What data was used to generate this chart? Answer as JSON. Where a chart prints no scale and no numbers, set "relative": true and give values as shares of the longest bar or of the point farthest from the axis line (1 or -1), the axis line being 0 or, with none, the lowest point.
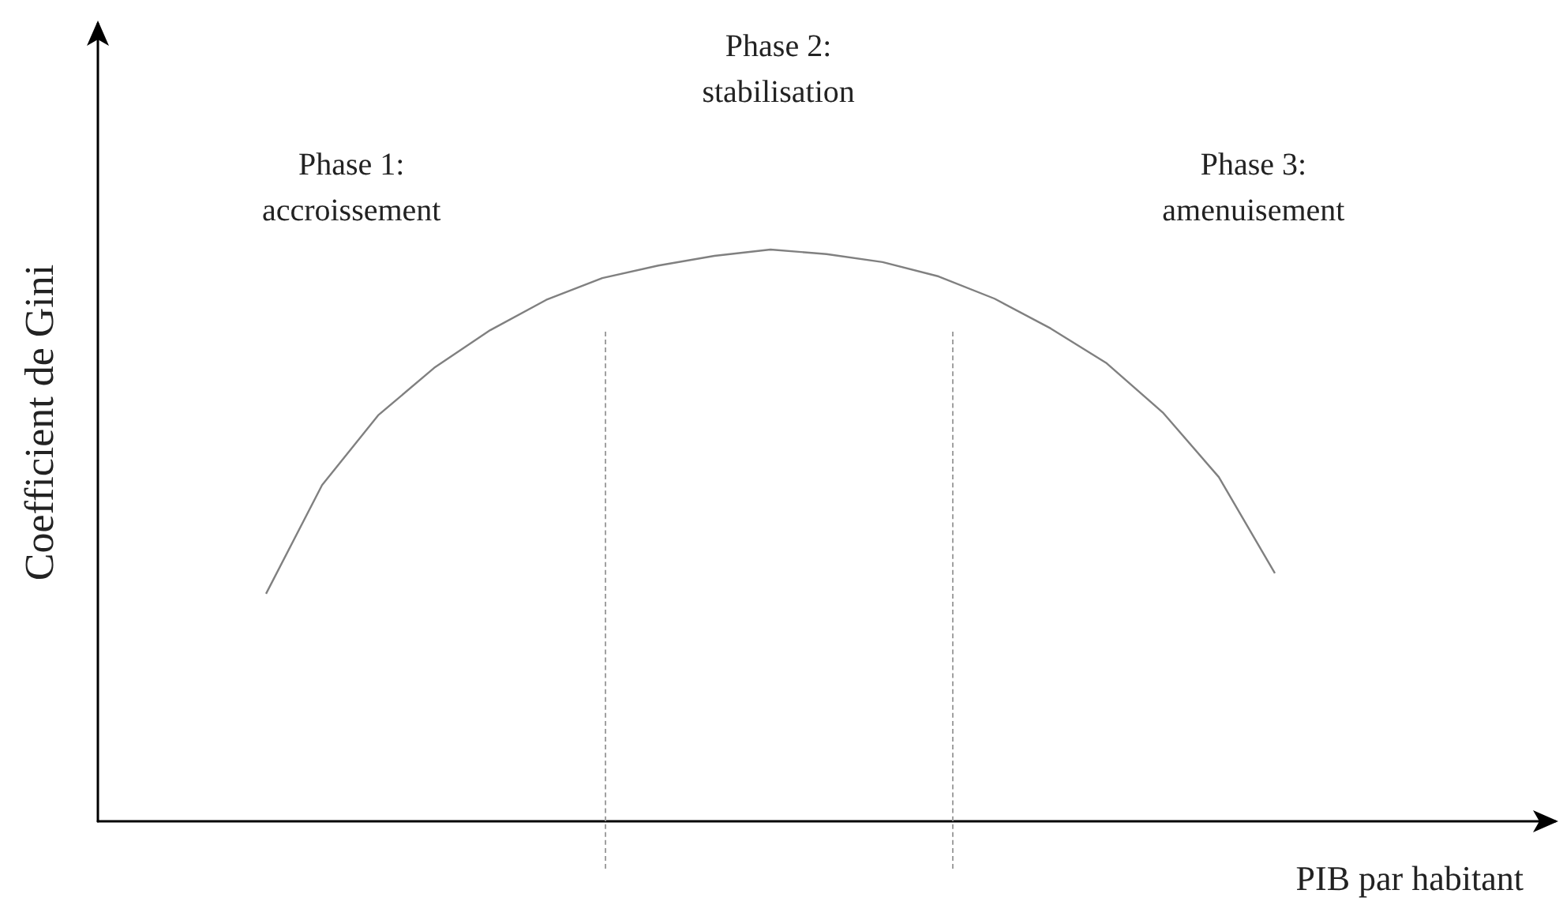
{
  "chart_data": {
    "type": "line",
    "relative": true,
    "xlabel": "PIB par habitant",
    "ylabel": "Coefficient de Gini",
    "marker": "none",
    "line_style": "solid",
    "categories": [
      null,
      null,
      null,
      null,
      null,
      null,
      null,
      null,
      null,
      null,
      null,
      null,
      null,
      null,
      null,
      null,
      null,
      null,
      null,
      null,
      null,
      null,
      null,
      null,
      null,
      null,
      null
    ],
    "series": [
      {
        "color": "#808080",
        "values": [
          null,
          null,
          null,
          0.398,
          0.588,
          0.71,
          0.793,
          0.859,
          0.912,
          0.95,
          0.972,
          0.989,
          1,
          0.992,
          0.978,
          0.953,
          0.914,
          0.862,
          0.801,
          0.715,
          0.602,
          0.434,
          null,
          null,
          null,
          null,
          null
        ]
      }
    ],
    "annotations": [
      "Phase 1:\naccroissement",
      "Phase 2:\nstabilisation",
      "Phase 3:\namenuisement"
    ]
  }
}
